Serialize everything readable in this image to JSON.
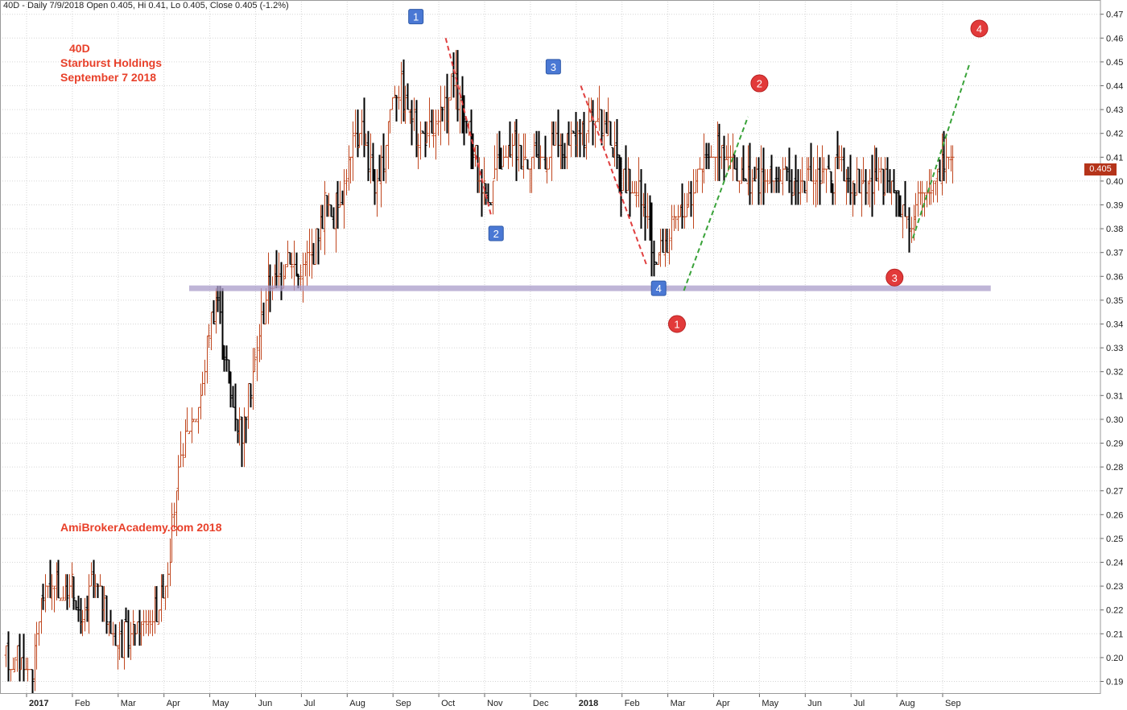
{
  "header": {
    "text": "40D - Daily 7/9/2018 Open 0.405, Hi 0.41, Lo 0.405, Close 0.405 (-1.2%)"
  },
  "annotations": {
    "ticker": "40D",
    "company": "Starburst Holdings",
    "date": "September 7 2018",
    "watermark": "AmiBrokerAcademy.com  2018"
  },
  "last_price_label": "0.405",
  "colors": {
    "up_bar": "#c0461e",
    "down_bar": "#000000",
    "resistance_line": "#a99cc9",
    "down_trend": "#e04040",
    "up_trend": "#3aa33a",
    "square_marker": "#4a78d4",
    "circle_marker": "#e23a3a",
    "annotation_text": "#e8402a",
    "price_tag": "#b5341a"
  },
  "chart_data": {
    "type": "bar",
    "subtype": "ohlc-daily",
    "title": "40D - Daily 7/9/2018 Open 0.405, Hi 0.41, Lo 0.405, Close 0.405 (-1.2%)",
    "ylim": [
      0.185,
      0.475
    ],
    "y_ticks": [
      "0.19",
      "0.20",
      "0.21",
      "0.22",
      "0.23",
      "0.24",
      "0.25",
      "0.26",
      "0.27",
      "0.28",
      "0.29",
      "0.30",
      "0.31",
      "0.32",
      "0.33",
      "0.34",
      "0.35",
      "0.36",
      "0.37",
      "0.38",
      "0.39",
      "0.40",
      "0.41",
      "0.42",
      "0.43",
      "0.44",
      "0.45",
      "0.46",
      "0.47"
    ],
    "x_ticks": [
      {
        "label": "2017",
        "bold": true,
        "t": 0.0
      },
      {
        "label": "Feb",
        "t": 1.0
      },
      {
        "label": "Mar",
        "t": 2.0
      },
      {
        "label": "Apr",
        "t": 3.0
      },
      {
        "label": "May",
        "t": 4.0
      },
      {
        "label": "Jun",
        "t": 5.0
      },
      {
        "label": "Jul",
        "t": 6.0
      },
      {
        "label": "Aug",
        "t": 7.0
      },
      {
        "label": "Sep",
        "t": 8.0
      },
      {
        "label": "Oct",
        "t": 9.0
      },
      {
        "label": "Nov",
        "t": 10.0
      },
      {
        "label": "Dec",
        "t": 11.0
      },
      {
        "label": "2018",
        "bold": true,
        "t": 12.0
      },
      {
        "label": "Feb",
        "t": 13.0
      },
      {
        "label": "Mar",
        "t": 14.0
      },
      {
        "label": "Apr",
        "t": 15.0
      },
      {
        "label": "May",
        "t": 16.0
      },
      {
        "label": "Jun",
        "t": 17.0
      },
      {
        "label": "Jul",
        "t": 18.0
      },
      {
        "label": "Aug",
        "t": 19.0
      },
      {
        "label": "Sep",
        "t": 20.0
      }
    ],
    "x_range": [
      -0.5,
      21.7
    ],
    "price_path": [
      [
        -0.45,
        0.2
      ],
      [
        -0.1,
        0.2
      ],
      [
        0.0,
        0.193
      ],
      [
        0.15,
        0.195
      ],
      [
        0.3,
        0.225
      ],
      [
        0.5,
        0.23
      ],
      [
        0.8,
        0.227
      ],
      [
        1.0,
        0.23
      ],
      [
        1.2,
        0.21
      ],
      [
        1.4,
        0.232
      ],
      [
        1.6,
        0.228
      ],
      [
        1.8,
        0.212
      ],
      [
        2.0,
        0.205
      ],
      [
        2.3,
        0.212
      ],
      [
        2.6,
        0.215
      ],
      [
        2.8,
        0.22
      ],
      [
        3.0,
        0.23
      ],
      [
        3.2,
        0.258
      ],
      [
        3.4,
        0.29
      ],
      [
        3.6,
        0.3
      ],
      [
        3.8,
        0.31
      ],
      [
        4.0,
        0.34
      ],
      [
        4.15,
        0.355
      ],
      [
        4.3,
        0.33
      ],
      [
        4.5,
        0.305
      ],
      [
        4.7,
        0.295
      ],
      [
        4.9,
        0.315
      ],
      [
        5.1,
        0.34
      ],
      [
        5.3,
        0.358
      ],
      [
        5.5,
        0.36
      ],
      [
        5.7,
        0.37
      ],
      [
        5.9,
        0.362
      ],
      [
        6.1,
        0.365
      ],
      [
        6.3,
        0.375
      ],
      [
        6.5,
        0.39
      ],
      [
        6.7,
        0.385
      ],
      [
        6.9,
        0.398
      ],
      [
        7.1,
        0.412
      ],
      [
        7.3,
        0.425
      ],
      [
        7.5,
        0.405
      ],
      [
        7.7,
        0.395
      ],
      [
        7.9,
        0.43
      ],
      [
        8.1,
        0.44
      ],
      [
        8.3,
        0.432
      ],
      [
        8.5,
        0.42
      ],
      [
        8.7,
        0.418
      ],
      [
        8.9,
        0.42
      ],
      [
        9.1,
        0.428
      ],
      [
        9.3,
        0.442
      ],
      [
        9.5,
        0.425
      ],
      [
        9.7,
        0.415
      ],
      [
        9.9,
        0.4
      ],
      [
        10.1,
        0.395
      ],
      [
        10.3,
        0.408
      ],
      [
        10.5,
        0.412
      ],
      [
        10.7,
        0.415
      ],
      [
        10.9,
        0.41
      ],
      [
        11.1,
        0.412
      ],
      [
        11.3,
        0.41
      ],
      [
        11.5,
        0.415
      ],
      [
        11.7,
        0.413
      ],
      [
        11.9,
        0.416
      ],
      [
        12.1,
        0.42
      ],
      [
        12.3,
        0.428
      ],
      [
        12.5,
        0.425
      ],
      [
        12.7,
        0.422
      ],
      [
        12.9,
        0.405
      ],
      [
        13.1,
        0.398
      ],
      [
        13.3,
        0.395
      ],
      [
        13.5,
        0.385
      ],
      [
        13.7,
        0.365
      ],
      [
        13.9,
        0.372
      ],
      [
        14.1,
        0.38
      ],
      [
        14.3,
        0.386
      ],
      [
        14.5,
        0.395
      ],
      [
        14.7,
        0.408
      ],
      [
        14.9,
        0.415
      ],
      [
        15.1,
        0.412
      ],
      [
        15.3,
        0.41
      ],
      [
        15.5,
        0.403
      ],
      [
        15.7,
        0.4
      ],
      [
        15.9,
        0.402
      ],
      [
        16.1,
        0.398
      ],
      [
        16.3,
        0.403
      ],
      [
        16.5,
        0.4
      ],
      [
        16.7,
        0.402
      ],
      [
        16.9,
        0.398
      ],
      [
        17.1,
        0.4
      ],
      [
        17.3,
        0.402
      ],
      [
        17.5,
        0.4
      ],
      [
        17.7,
        0.405
      ],
      [
        17.9,
        0.402
      ],
      [
        18.1,
        0.4
      ],
      [
        18.3,
        0.399
      ],
      [
        18.5,
        0.4
      ],
      [
        18.7,
        0.398
      ],
      [
        18.9,
        0.396
      ],
      [
        19.1,
        0.39
      ],
      [
        19.3,
        0.385
      ],
      [
        19.5,
        0.392
      ],
      [
        19.7,
        0.398
      ],
      [
        19.9,
        0.405
      ],
      [
        20.1,
        0.41
      ],
      [
        20.25,
        0.405
      ]
    ],
    "resistance_line": {
      "y": 0.355,
      "t_start": 3.55,
      "t_end": 21.05
    },
    "trend_lines": [
      {
        "kind": "down",
        "t1": 9.15,
        "y1": 0.46,
        "t2": 10.15,
        "y2": 0.385
      },
      {
        "kind": "down",
        "t1": 12.1,
        "y1": 0.44,
        "t2": 13.55,
        "y2": 0.364
      },
      {
        "kind": "up",
        "t1": 14.35,
        "y1": 0.354,
        "t2": 15.75,
        "y2": 0.427
      },
      {
        "kind": "up",
        "t1": 19.35,
        "y1": 0.376,
        "t2": 20.6,
        "y2": 0.45
      }
    ],
    "square_markers": [
      {
        "label": "1",
        "t": 8.5,
        "y": 0.469
      },
      {
        "label": "2",
        "t": 10.25,
        "y": 0.378
      },
      {
        "label": "3",
        "t": 11.5,
        "y": 0.448
      },
      {
        "label": "4",
        "t": 13.8,
        "y": 0.355
      }
    ],
    "circle_markers": [
      {
        "label": "1",
        "t": 14.2,
        "y": 0.34
      },
      {
        "label": "2",
        "t": 16.0,
        "y": 0.441
      },
      {
        "label": "3",
        "t": 18.95,
        "y": 0.3595
      },
      {
        "label": "4",
        "t": 20.8,
        "y": 0.464
      }
    ]
  }
}
